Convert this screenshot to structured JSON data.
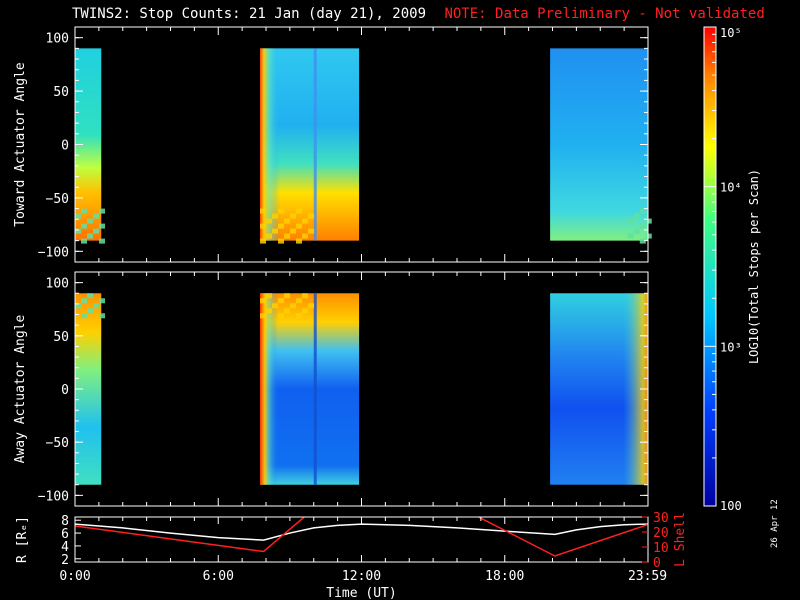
{
  "header": {
    "title": "TWINS2: Stop Counts: 21 Jan (day  21), 2009",
    "note": "NOTE: Data Preliminary - Not validated"
  },
  "side_date": "26 Apr 12",
  "colors": {
    "background": "#000000",
    "note": "#ff2020",
    "lshell_line": "#ff2020",
    "r_line": "#ffffff"
  },
  "chart_data": [
    {
      "type": "heatmap",
      "ylabel": "Toward Actuator Angle",
      "ylim": [
        -110,
        110
      ],
      "yticks": [
        100,
        50,
        0,
        -50,
        -100
      ],
      "xlim": [
        0,
        24
      ],
      "data_blocks": [
        {
          "t_start": 0.0,
          "t_end": 1.1,
          "angle_range": [
            -90,
            90
          ],
          "profile": "toward-a"
        },
        {
          "t_start": 7.75,
          "t_end": 11.9,
          "angle_range": [
            -90,
            90
          ],
          "profile": "toward-b"
        },
        {
          "t_start": 19.9,
          "t_end": 23.99,
          "angle_range": [
            -90,
            90
          ],
          "profile": "toward-c"
        }
      ]
    },
    {
      "type": "heatmap",
      "ylabel": "Away Actuator Angle",
      "ylim": [
        -110,
        110
      ],
      "yticks": [
        100,
        50,
        0,
        -50,
        -100
      ],
      "xlim": [
        0,
        24
      ],
      "data_blocks": [
        {
          "t_start": 0.0,
          "t_end": 1.1,
          "angle_range": [
            -90,
            90
          ],
          "profile": "away-a"
        },
        {
          "t_start": 7.75,
          "t_end": 11.9,
          "angle_range": [
            -90,
            90
          ],
          "profile": "away-b"
        },
        {
          "t_start": 19.9,
          "t_end": 23.99,
          "angle_range": [
            -90,
            90
          ],
          "profile": "away-c"
        }
      ]
    },
    {
      "type": "line",
      "ylabel": "R [Rₑ]",
      "ylabel_right": "L Shell",
      "xlabel": "Time (UT)",
      "xlim": [
        0,
        24
      ],
      "xticks": [
        "0:00",
        "6:00",
        "12:00",
        "18:00",
        "23:59"
      ],
      "xtick_values": [
        0,
        6,
        12,
        18,
        23.98
      ],
      "ylim": [
        1.5,
        8.5
      ],
      "yticks": [
        2,
        4,
        6,
        8
      ],
      "ylim_right": [
        0,
        30
      ],
      "yticks_right": [
        0,
        10,
        20,
        30
      ],
      "series": [
        {
          "axis": "left",
          "x": [
            0,
            2,
            4,
            6,
            7.9,
            9,
            10,
            11,
            12,
            14,
            16,
            18,
            20.1,
            21,
            22,
            23,
            24
          ],
          "y": [
            7.4,
            6.8,
            6.0,
            5.3,
            4.9,
            6.0,
            6.8,
            7.2,
            7.4,
            7.2,
            6.8,
            6.3,
            5.8,
            6.5,
            7.0,
            7.3,
            7.4
          ]
        },
        {
          "axis": "right",
          "x": [
            0,
            7.9,
            9.6
          ],
          "y": [
            24,
            7,
            30
          ]
        },
        {
          "axis": "right",
          "x": [
            16.9,
            20.1,
            24
          ],
          "y": [
            30,
            4,
            25
          ]
        }
      ]
    }
  ],
  "colorbar": {
    "label": "LOG10(Total Stops per Scan)",
    "ticks": [
      "10⁵",
      "10⁴",
      "10³",
      "100"
    ],
    "tick_values": [
      100000,
      10000,
      1000,
      100
    ],
    "range": [
      100,
      100000
    ],
    "scale": "log"
  }
}
